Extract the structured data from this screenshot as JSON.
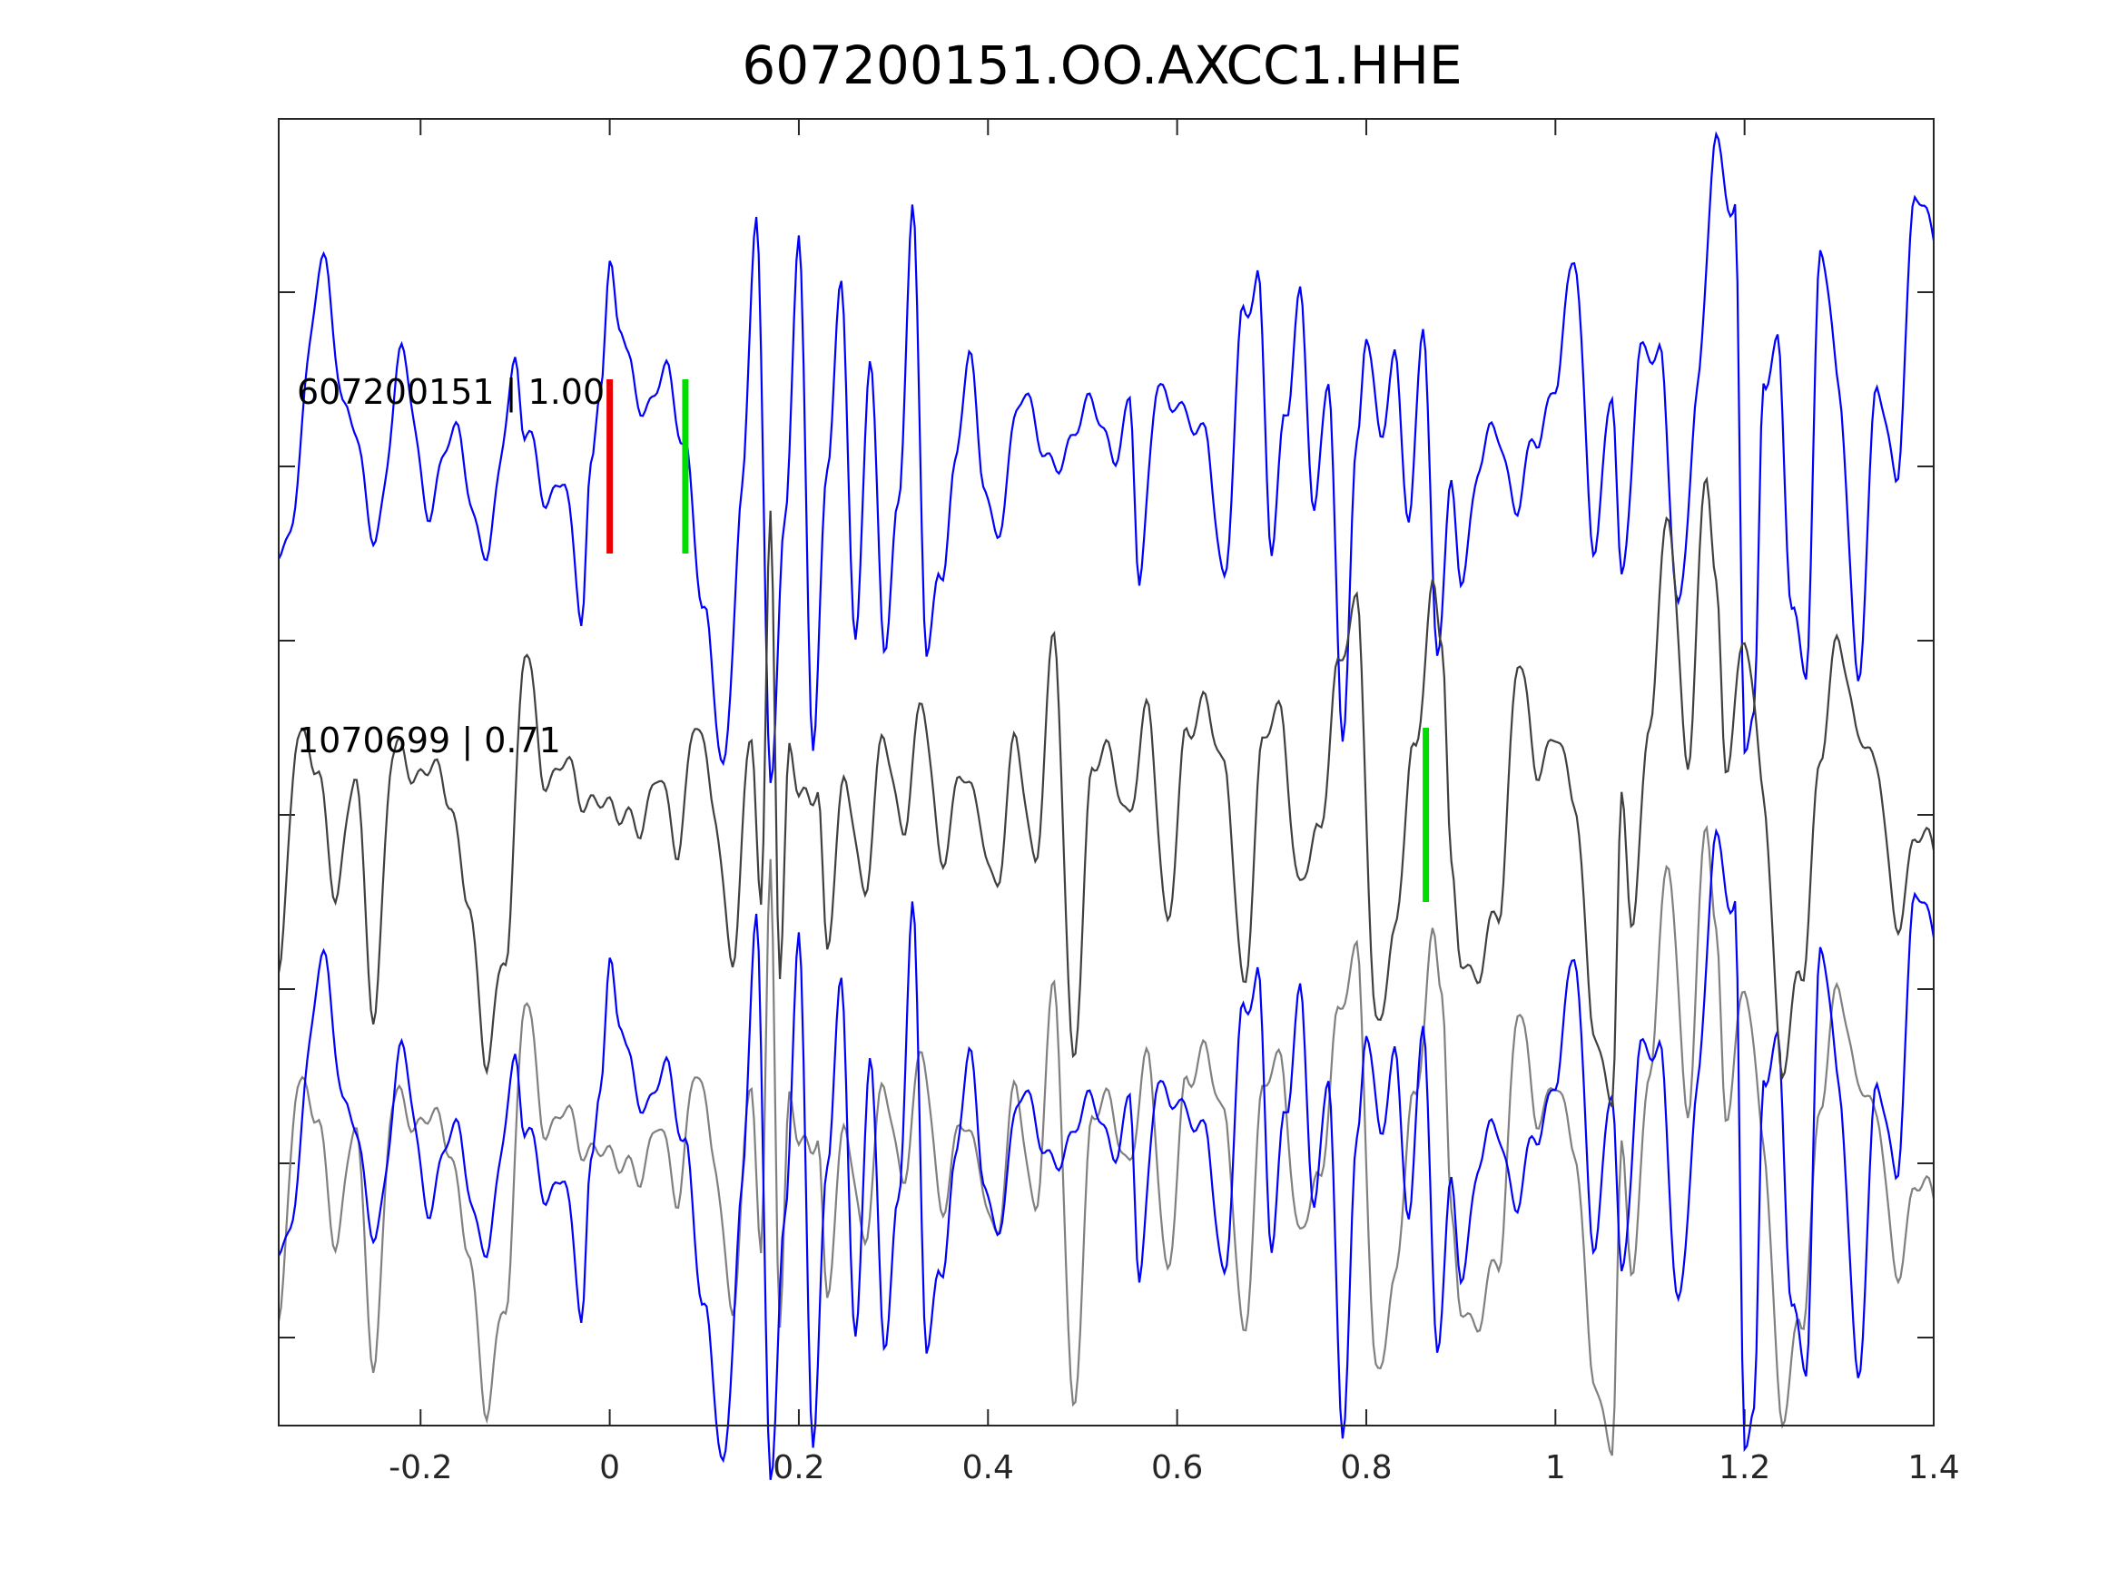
{
  "figure": {
    "title": "607200151.OO.AXCC1.HHE"
  },
  "chart_data": {
    "type": "line",
    "title": "607200151.OO.AXCC1.HHE",
    "xlabel": "",
    "ylabel": "",
    "xlim": [
      -0.35,
      1.4
    ],
    "xticks": [
      -0.2,
      0,
      0.2,
      0.4,
      0.6,
      0.8,
      1,
      1.2,
      1.4
    ],
    "xtick_labels": [
      "-0.2",
      "0",
      "0.2",
      "0.4",
      "0.6",
      "0.8",
      "1",
      "1.2",
      "1.4"
    ],
    "grid": false,
    "legend": "none",
    "traces": [
      {
        "label": "607200151 | 1.00",
        "color": "#0000ff",
        "offset": 0,
        "x": [
          -0.35,
          -0.3,
          -0.28,
          -0.25,
          -0.22,
          -0.19,
          -0.16,
          -0.13,
          -0.1,
          -0.09,
          -0.07,
          -0.05,
          -0.03,
          -0.02,
          -0.01,
          0.0,
          0.01,
          0.02,
          0.04,
          0.06,
          0.08,
          0.1,
          0.12,
          0.14,
          0.155,
          0.17,
          0.185,
          0.2,
          0.215,
          0.23,
          0.245,
          0.26,
          0.275,
          0.29,
          0.305,
          0.32,
          0.335,
          0.35,
          0.365,
          0.38,
          0.395,
          0.41,
          0.44,
          0.47,
          0.5,
          0.53,
          0.55,
          0.56,
          0.58,
          0.595,
          0.61,
          0.63,
          0.65,
          0.67,
          0.685,
          0.7,
          0.715,
          0.73,
          0.745,
          0.76,
          0.775,
          0.79,
          0.8,
          0.815,
          0.83,
          0.845,
          0.86,
          0.875,
          0.89,
          0.9,
          0.92,
          0.94,
          0.96,
          0.98,
          1.0,
          1.02,
          1.04,
          1.06,
          1.07,
          1.09,
          1.11,
          1.13,
          1.15,
          1.17,
          1.19,
          1.2,
          1.21,
          1.22,
          1.235,
          1.25,
          1.265,
          1.28,
          1.3,
          1.32,
          1.34,
          1.36,
          1.38,
          1.4
        ],
        "y": [
          -0.3,
          0.6,
          0.2,
          -0.2,
          0.3,
          -0.1,
          0.1,
          -0.3,
          0.35,
          0.1,
          -0.1,
          0.0,
          -0.5,
          0.0,
          0.3,
          0.6,
          0.4,
          0.3,
          0.2,
          0.25,
          0.1,
          -0.5,
          -0.9,
          -0.1,
          0.75,
          -0.9,
          -0.2,
          0.65,
          -0.8,
          0.0,
          0.5,
          -0.5,
          0.35,
          -0.6,
          -0.1,
          0.8,
          -0.6,
          -0.3,
          0.0,
          0.3,
          0.0,
          -0.2,
          0.25,
          -0.05,
          0.2,
          0.05,
          0.2,
          -0.4,
          0.3,
          0.2,
          0.1,
          0.15,
          -0.4,
          0.5,
          0.6,
          -0.3,
          0.2,
          0.55,
          -0.2,
          0.3,
          -0.8,
          0.0,
          0.4,
          0.15,
          0.3,
          -0.2,
          0.5,
          -0.6,
          -0.1,
          -0.3,
          0.0,
          0.1,
          -0.1,
          0.05,
          0.3,
          0.6,
          -0.2,
          0.2,
          -0.4,
          0.4,
          0.3,
          -0.4,
          0.2,
          1.0,
          0.8,
          -0.9,
          -0.8,
          0.3,
          0.4,
          -0.5,
          -0.6,
          0.7,
          0.2,
          -0.6,
          0.2,
          0.0,
          0.8,
          0.7
        ]
      },
      {
        "label": "1070699 | 0.71",
        "color": "#404040",
        "offset": -2,
        "x": [
          -0.35,
          -0.33,
          -0.31,
          -0.29,
          -0.27,
          -0.25,
          -0.23,
          -0.21,
          -0.19,
          -0.17,
          -0.15,
          -0.13,
          -0.11,
          -0.09,
          -0.07,
          -0.05,
          -0.03,
          -0.01,
          0.01,
          0.03,
          0.05,
          0.07,
          0.09,
          0.11,
          0.13,
          0.15,
          0.16,
          0.17,
          0.18,
          0.19,
          0.2,
          0.21,
          0.22,
          0.23,
          0.25,
          0.27,
          0.29,
          0.31,
          0.33,
          0.35,
          0.37,
          0.39,
          0.41,
          0.43,
          0.45,
          0.47,
          0.49,
          0.51,
          0.53,
          0.55,
          0.57,
          0.59,
          0.61,
          0.63,
          0.65,
          0.67,
          0.69,
          0.71,
          0.73,
          0.75,
          0.77,
          0.79,
          0.81,
          0.83,
          0.85,
          0.87,
          0.88,
          0.89,
          0.9,
          0.92,
          0.94,
          0.96,
          0.98,
          1.0,
          1.02,
          1.04,
          1.06,
          1.07,
          1.08,
          1.1,
          1.12,
          1.14,
          1.16,
          1.17,
          1.18,
          1.2,
          1.22,
          1.24,
          1.26,
          1.28,
          1.3,
          1.32,
          1.34,
          1.36,
          1.38,
          1.4
        ],
        "y": [
          -0.5,
          0.3,
          0.1,
          -0.2,
          0.1,
          -0.6,
          0.2,
          0.1,
          0.2,
          0.0,
          -0.2,
          -0.8,
          -0.4,
          0.5,
          0.1,
          0.2,
          0.0,
          0.1,
          -0.05,
          0.0,
          0.1,
          -0.1,
          0.3,
          0.0,
          -0.4,
          0.2,
          -0.3,
          1.0,
          -0.5,
          0.2,
          0.0,
          0.1,
          0.1,
          -0.4,
          0.1,
          -0.2,
          0.2,
          0.0,
          0.3,
          -0.1,
          0.1,
          0.0,
          -0.2,
          0.2,
          -0.1,
          0.5,
          -0.7,
          0.1,
          0.2,
          0.0,
          0.3,
          -0.3,
          0.2,
          0.4,
          0.1,
          -0.5,
          0.2,
          0.3,
          -0.2,
          -0.1,
          0.5,
          0.6,
          -0.6,
          -0.4,
          0.2,
          0.7,
          0.5,
          -0.2,
          -0.4,
          -0.5,
          -0.3,
          0.5,
          0.1,
          0.3,
          0.0,
          -0.6,
          -0.9,
          0.0,
          -0.3,
          0.3,
          0.9,
          0.2,
          1.0,
          0.7,
          0.2,
          0.5,
          0.1,
          -0.8,
          -0.5,
          0.2,
          0.5,
          0.3,
          0.1,
          -0.3,
          -0.1,
          -0.1
        ]
      }
    ],
    "overlay": {
      "offset": -4,
      "series": [
        "607200151 | 1.00",
        "1070699 | 0.71"
      ],
      "colors": [
        "#0000ff",
        "#808080"
      ]
    },
    "markers": [
      {
        "x": 0.0,
        "trace": 0,
        "color": "#ee0000"
      },
      {
        "x": 0.08,
        "trace": 0,
        "color": "#00dd00"
      },
      {
        "x": 0.863,
        "trace": 1,
        "color": "#00dd00"
      }
    ]
  }
}
